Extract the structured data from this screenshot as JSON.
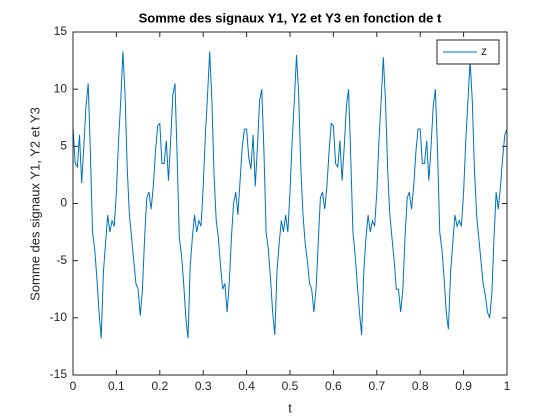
{
  "chart_data": {
    "type": "line",
    "title": "Somme des signaux Y1, Y2 et Y3 en fonction de t",
    "xlabel": "t",
    "ylabel": "Somme des signaux Y1, Y2 et Y3",
    "x": [
      0,
      0.005,
      0.01,
      0.015,
      0.02,
      0.025,
      0.03,
      0.035,
      0.04,
      0.045,
      0.05,
      0.055,
      0.06,
      0.065,
      0.07,
      0.075,
      0.08,
      0.085,
      0.09,
      0.095,
      0.1,
      0.105,
      0.11,
      0.115,
      0.12,
      0.125,
      0.13,
      0.135,
      0.14,
      0.145,
      0.15,
      0.155,
      0.16,
      0.165,
      0.17,
      0.175,
      0.18,
      0.185,
      0.19,
      0.195,
      0.2,
      0.205,
      0.21,
      0.215,
      0.22,
      0.225,
      0.23,
      0.235,
      0.24,
      0.245,
      0.25,
      0.255,
      0.26,
      0.265,
      0.27,
      0.275,
      0.28,
      0.285,
      0.29,
      0.295,
      0.3,
      0.305,
      0.31,
      0.315,
      0.32,
      0.325,
      0.33,
      0.335,
      0.34,
      0.345,
      0.35,
      0.355,
      0.36,
      0.365,
      0.37,
      0.375,
      0.38,
      0.385,
      0.39,
      0.395,
      0.4,
      0.405,
      0.41,
      0.415,
      0.42,
      0.425,
      0.43,
      0.435,
      0.44,
      0.445,
      0.45,
      0.455,
      0.46,
      0.465,
      0.47,
      0.475,
      0.48,
      0.485,
      0.49,
      0.495,
      0.5,
      0.505,
      0.51,
      0.515,
      0.52,
      0.525,
      0.53,
      0.535,
      0.54,
      0.545,
      0.55,
      0.555,
      0.56,
      0.565,
      0.57,
      0.575,
      0.58,
      0.585,
      0.59,
      0.595,
      0.6,
      0.605,
      0.61,
      0.615,
      0.62,
      0.625,
      0.63,
      0.635,
      0.64,
      0.645,
      0.65,
      0.655,
      0.66,
      0.665,
      0.67,
      0.675,
      0.68,
      0.685,
      0.69,
      0.695,
      0.7,
      0.705,
      0.71,
      0.715,
      0.72,
      0.725,
      0.73,
      0.735,
      0.74,
      0.745,
      0.75,
      0.755,
      0.76,
      0.765,
      0.77,
      0.775,
      0.78,
      0.785,
      0.79,
      0.795,
      0.8,
      0.805,
      0.81,
      0.815,
      0.82,
      0.825,
      0.83,
      0.835,
      0.84,
      0.845,
      0.85,
      0.855,
      0.86,
      0.865,
      0.87,
      0.875,
      0.88,
      0.885,
      0.89,
      0.895,
      0.9,
      0.905,
      0.91,
      0.915,
      0.92,
      0.925,
      0.93,
      0.935,
      0.94,
      0.945,
      0.95,
      0.955,
      0.96,
      0.965,
      0.97,
      0.975,
      0.98,
      0.985,
      0.99,
      0.995,
      1
    ],
    "series": [
      {
        "name": "z",
        "color": "#0072bd",
        "values": [
          6.7,
          3.5,
          3.2,
          6.0,
          1.8,
          5.0,
          8.5,
          10.5,
          4.5,
          -2.5,
          -4.0,
          -6.5,
          -9.5,
          -11.8,
          -6.0,
          -3.5,
          -1.0,
          -2.5,
          -1.5,
          -2.0,
          1.0,
          5.5,
          9.0,
          13.3,
          9.5,
          3.0,
          -1.0,
          -3.0,
          -5.0,
          -7.0,
          -7.5,
          -9.8,
          -7.5,
          -3.0,
          0.5,
          1.0,
          -0.5,
          1.5,
          4.5,
          6.8,
          7.0,
          3.5,
          3.5,
          5.5,
          2.0,
          5.5,
          9.5,
          10.5,
          4.0,
          -3.0,
          -4.5,
          -7.0,
          -10.0,
          -11.8,
          -5.5,
          -3.0,
          -1.0,
          -2.5,
          -1.5,
          -2.0,
          1.5,
          6.0,
          9.5,
          13.3,
          9.0,
          2.5,
          -1.5,
          -3.0,
          -5.5,
          -7.5,
          -7.0,
          -9.5,
          -7.0,
          -3.0,
          0.0,
          1.0,
          -1.0,
          2.0,
          5.0,
          6.5,
          6.5,
          4.0,
          3.0,
          6.0,
          1.5,
          5.0,
          9.0,
          10.0,
          4.5,
          -2.5,
          -4.0,
          -6.5,
          -9.5,
          -11.5,
          -6.0,
          -3.5,
          -1.5,
          -2.5,
          -1.0,
          -2.5,
          1.0,
          5.5,
          9.0,
          13.0,
          9.5,
          3.0,
          -1.0,
          -3.5,
          -5.0,
          -7.0,
          -7.5,
          -9.5,
          -7.5,
          -3.5,
          0.5,
          1.0,
          -0.5,
          1.5,
          4.5,
          7.0,
          6.8,
          3.5,
          3.2,
          5.5,
          2.0,
          5.0,
          8.5,
          10.0,
          4.0,
          -2.5,
          -4.5,
          -7.0,
          -9.5,
          -11.5,
          -6.0,
          -3.0,
          -1.0,
          -2.5,
          -1.5,
          -2.0,
          1.0,
          5.5,
          9.0,
          12.8,
          9.0,
          3.0,
          -1.0,
          -3.0,
          -5.0,
          -7.5,
          -7.5,
          -9.5,
          -7.5,
          -3.0,
          0.5,
          1.0,
          -0.5,
          1.5,
          4.5,
          6.5,
          6.5,
          3.5,
          3.5,
          5.5,
          2.0,
          5.0,
          8.5,
          10.0,
          4.5,
          -2.5,
          -4.0,
          -6.5,
          -9.5,
          -11.0,
          -6.0,
          -3.5,
          -1.0,
          -2.0,
          -1.5,
          -2.0,
          1.0,
          5.5,
          9.0,
          12.5,
          9.0,
          3.0,
          -1.0,
          -3.0,
          -5.0,
          -7.0,
          -8.0,
          -9.5,
          -10.0,
          -8.0,
          -3.0,
          1.0,
          -0.5,
          1.5,
          4.0,
          6.0,
          6.5
        ]
      }
    ],
    "xlim": [
      0,
      1
    ],
    "xticks": [
      0,
      0.1,
      0.2,
      0.3,
      0.4,
      0.5,
      0.6,
      0.7,
      0.8,
      0.9,
      1
    ],
    "ylim": [
      -15,
      15
    ],
    "yticks": [
      -15,
      -10,
      -5,
      0,
      5,
      10,
      15
    ],
    "legend": "northeast"
  }
}
